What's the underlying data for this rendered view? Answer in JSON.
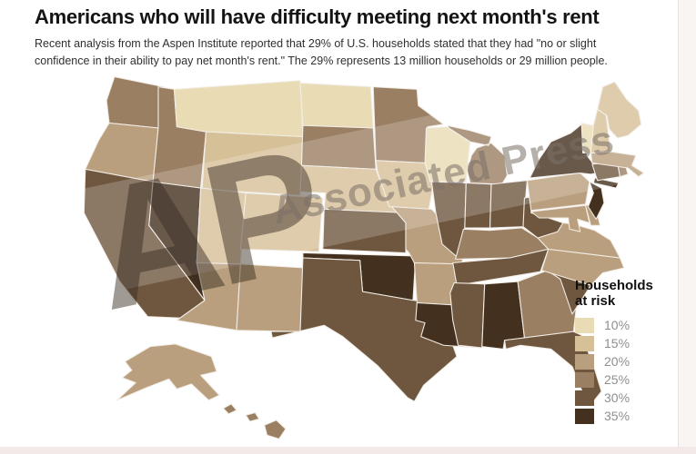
{
  "page": {
    "title": "Americans who will have difficulty meeting next month's rent",
    "subtitle_line1": "Recent analysis from the Aspen Institute reported that 29% of U.S. households stated that they had \"no or slight",
    "subtitle_line2": "confidence in their ability to pay net month's rent.\" The 29% represents 13 million households or 29 million people."
  },
  "watermark": {
    "ap": "AP",
    "text": "Associated Press"
  },
  "legend": {
    "title_line1": "Households",
    "title_line2": "at risk",
    "items": [
      {
        "label": "10%",
        "color": "#e9dcb4"
      },
      {
        "label": "15%",
        "color": "#d6c098"
      },
      {
        "label": "20%",
        "color": "#b99f7d"
      },
      {
        "label": "25%",
        "color": "#9a7f62"
      },
      {
        "label": "30%",
        "color": "#6f573f"
      },
      {
        "label": "35%",
        "color": "#43301e"
      }
    ]
  },
  "chart_data": {
    "type": "choropleth_map",
    "region": "United States",
    "title": "Americans who will have difficulty meeting next month's rent",
    "legend_title": "Households at risk",
    "unit": "percent of households at risk of missing next month's rent",
    "value_buckets": [
      10,
      15,
      20,
      25,
      30,
      35
    ],
    "states": [
      {
        "id": "WA",
        "name": "Washington",
        "value": 25
      },
      {
        "id": "OR",
        "name": "Oregon",
        "value": 20
      },
      {
        "id": "CA",
        "name": "California",
        "value": 30
      },
      {
        "id": "NV",
        "name": "Nevada",
        "value": 35
      },
      {
        "id": "ID",
        "name": "Idaho",
        "value": 25
      },
      {
        "id": "MT",
        "name": "Montana",
        "value": 10
      },
      {
        "id": "WY",
        "name": "Wyoming",
        "value": 15
      },
      {
        "id": "UT",
        "name": "Utah",
        "value": 15
      },
      {
        "id": "CO",
        "name": "Colorado",
        "value": 15
      },
      {
        "id": "AZ",
        "name": "Arizona",
        "value": 20
      },
      {
        "id": "NM",
        "name": "New Mexico",
        "value": 20
      },
      {
        "id": "ND",
        "name": "North Dakota",
        "value": 10
      },
      {
        "id": "SD",
        "name": "South Dakota",
        "value": 25
      },
      {
        "id": "NE",
        "name": "Nebraska",
        "value": 15
      },
      {
        "id": "KS",
        "name": "Kansas",
        "value": 30
      },
      {
        "id": "OK",
        "name": "Oklahoma",
        "value": 35
      },
      {
        "id": "TX",
        "name": "Texas",
        "value": 30
      },
      {
        "id": "MN",
        "name": "Minnesota",
        "value": 25
      },
      {
        "id": "IA",
        "name": "Iowa",
        "value": 15
      },
      {
        "id": "MO",
        "name": "Missouri",
        "value": 20
      },
      {
        "id": "AR",
        "name": "Arkansas",
        "value": 20
      },
      {
        "id": "LA",
        "name": "Louisiana",
        "value": 35
      },
      {
        "id": "WI",
        "name": "Wisconsin",
        "value": 10
      },
      {
        "id": "IL",
        "name": "Illinois",
        "value": 30
      },
      {
        "id": "MI",
        "name": "Michigan",
        "value": 25
      },
      {
        "id": "IN",
        "name": "Indiana",
        "value": 30
      },
      {
        "id": "OH",
        "name": "Ohio",
        "value": 30
      },
      {
        "id": "KY",
        "name": "Kentucky",
        "value": 25
      },
      {
        "id": "TN",
        "name": "Tennessee",
        "value": 30
      },
      {
        "id": "MS",
        "name": "Mississippi",
        "value": 30
      },
      {
        "id": "AL",
        "name": "Alabama",
        "value": 35
      },
      {
        "id": "GA",
        "name": "Georgia",
        "value": 25
      },
      {
        "id": "FL",
        "name": "Florida",
        "value": 30
      },
      {
        "id": "SC",
        "name": "South Carolina",
        "value": 30
      },
      {
        "id": "NC",
        "name": "North Carolina",
        "value": 20
      },
      {
        "id": "VA",
        "name": "Virginia",
        "value": 20
      },
      {
        "id": "WV",
        "name": "West Virginia",
        "value": 30
      },
      {
        "id": "MD",
        "name": "Maryland",
        "value": 20
      },
      {
        "id": "DE",
        "name": "Delaware",
        "value": 20
      },
      {
        "id": "PA",
        "name": "Pennsylvania",
        "value": 20
      },
      {
        "id": "NJ",
        "name": "New Jersey",
        "value": 35
      },
      {
        "id": "NY",
        "name": "New York",
        "value": 35
      },
      {
        "id": "CT",
        "name": "Connecticut",
        "value": 30
      },
      {
        "id": "RI",
        "name": "Rhode Island",
        "value": 25
      },
      {
        "id": "MA",
        "name": "Massachusetts",
        "value": 20
      },
      {
        "id": "VT",
        "name": "Vermont",
        "value": 10
      },
      {
        "id": "NH",
        "name": "New Hampshire",
        "value": 15
      },
      {
        "id": "ME",
        "name": "Maine",
        "value": 15
      },
      {
        "id": "AK",
        "name": "Alaska",
        "value": 20
      },
      {
        "id": "HI",
        "name": "Hawaii",
        "value": 25
      }
    ]
  }
}
